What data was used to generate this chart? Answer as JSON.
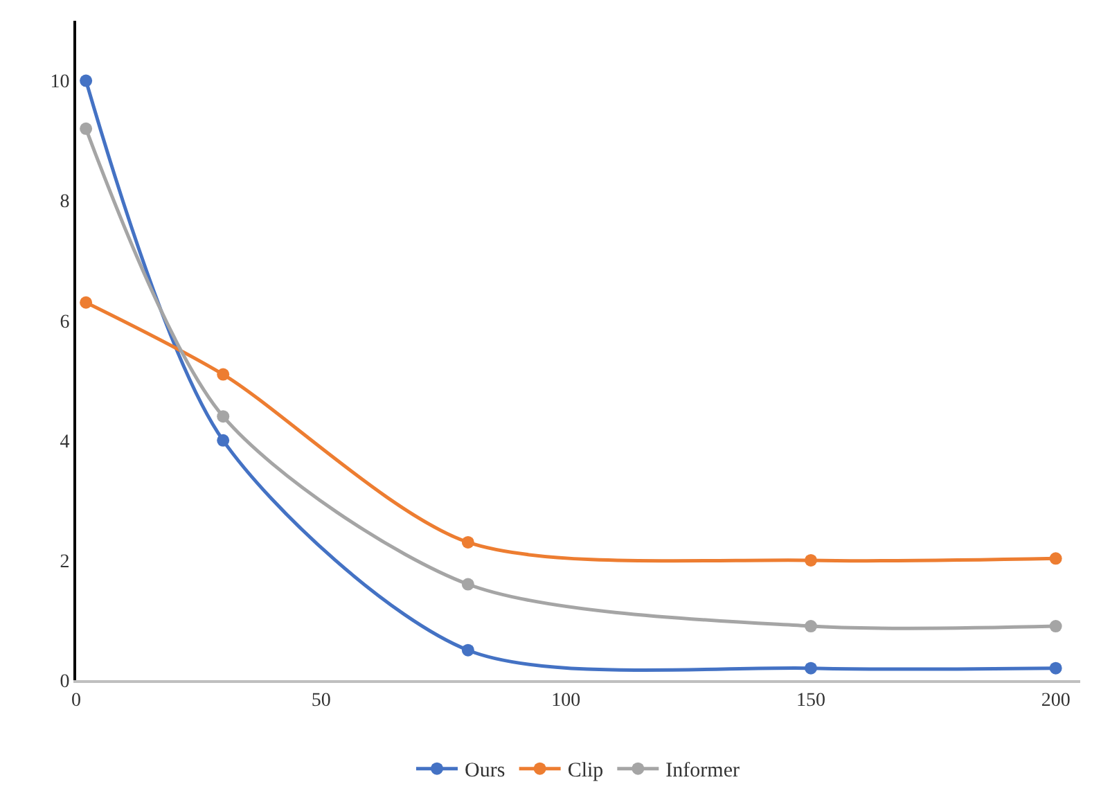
{
  "chart_data": {
    "type": "line",
    "x": [
      2,
      30,
      80,
      150,
      200
    ],
    "series": [
      {
        "name": "Ours",
        "color": "#4472c4",
        "values": [
          10,
          4,
          0.5,
          0.2,
          0.2
        ]
      },
      {
        "name": "Clip",
        "color": "#ed7d31",
        "values": [
          6.3,
          5.1,
          2.3,
          2.0,
          2.03
        ]
      },
      {
        "name": "Informer",
        "color": "#a5a5a5",
        "values": [
          9.2,
          4.4,
          1.6,
          0.9,
          0.9
        ]
      }
    ],
    "xlim": [
      0,
      205
    ],
    "xticks": [
      0,
      50,
      100,
      150,
      200
    ],
    "ylim": [
      0,
      11
    ],
    "yticks": [
      0,
      2,
      4,
      6,
      8,
      10
    ],
    "grid": false,
    "legend": "bottom",
    "marker": "circle",
    "line_style": "solid"
  }
}
